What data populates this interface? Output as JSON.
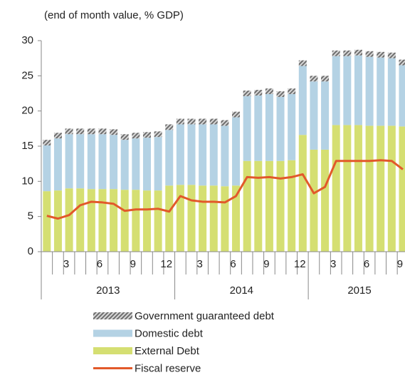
{
  "chart_data": {
    "type": "bar",
    "subtitle": "(end of month value, % GDP)",
    "categories": [
      null,
      null,
      "3",
      null,
      null,
      "6",
      null,
      null,
      "9",
      null,
      null,
      "12",
      null,
      null,
      "3",
      null,
      null,
      "6",
      null,
      null,
      "9",
      null,
      null,
      "12",
      null,
      null,
      "3",
      null,
      null,
      "6",
      null,
      null,
      "9"
    ],
    "years": [
      "2013",
      "2014",
      "2015"
    ],
    "ylim": [
      0,
      30
    ],
    "yticks": [
      0,
      5,
      10,
      15,
      20,
      25,
      30
    ],
    "grid": false,
    "series": [
      {
        "name": "Government guaranteed debt",
        "type": "bar",
        "color": "#8c8c8c",
        "pattern": "hatch",
        "values": [
          0.8,
          0.8,
          0.8,
          0.8,
          0.8,
          0.8,
          0.8,
          0.8,
          0.8,
          0.8,
          0.8,
          0.8,
          0.8,
          0.8,
          0.8,
          0.8,
          0.8,
          0.8,
          0.8,
          0.8,
          0.8,
          0.8,
          0.8,
          0.8,
          0.8,
          0.8,
          0.8,
          0.8,
          0.8,
          0.8,
          0.8,
          0.8,
          0.8
        ]
      },
      {
        "name": "Domestic debt",
        "type": "bar",
        "color": "#b4d2e4",
        "values": [
          6.5,
          7.4,
          7.7,
          7.7,
          7.8,
          7.8,
          7.7,
          7.1,
          7.3,
          7.5,
          7.6,
          7.9,
          8.6,
          8.6,
          8.7,
          8.7,
          8.6,
          9.7,
          9.2,
          9.3,
          9.5,
          9.1,
          9.4,
          9.8,
          9.7,
          9.7,
          9.8,
          9.8,
          9.9,
          9.8,
          9.7,
          9.6,
          8.7
        ]
      },
      {
        "name": "External Debt",
        "type": "bar",
        "color": "#d5df72",
        "values": [
          8.6,
          8.7,
          9.0,
          9.0,
          8.9,
          8.9,
          8.9,
          8.8,
          8.8,
          8.7,
          8.7,
          9.4,
          9.5,
          9.5,
          9.4,
          9.4,
          9.3,
          9.4,
          12.9,
          12.9,
          12.9,
          12.9,
          13.0,
          16.6,
          14.5,
          14.5,
          18.0,
          18.0,
          18.0,
          17.9,
          17.9,
          17.9,
          17.8
        ]
      },
      {
        "name": "Fiscal reserve",
        "type": "line",
        "color": "#e2592a",
        "values": [
          5.1,
          4.7,
          5.2,
          6.6,
          7.1,
          7.0,
          6.8,
          5.8,
          6.0,
          6.0,
          6.1,
          5.7,
          7.9,
          7.3,
          7.1,
          7.1,
          7.0,
          7.9,
          10.6,
          10.5,
          10.6,
          10.4,
          10.6,
          11.0,
          8.3,
          9.2,
          12.9,
          12.9,
          12.9,
          12.9,
          13.0,
          12.9,
          11.7
        ]
      }
    ]
  }
}
